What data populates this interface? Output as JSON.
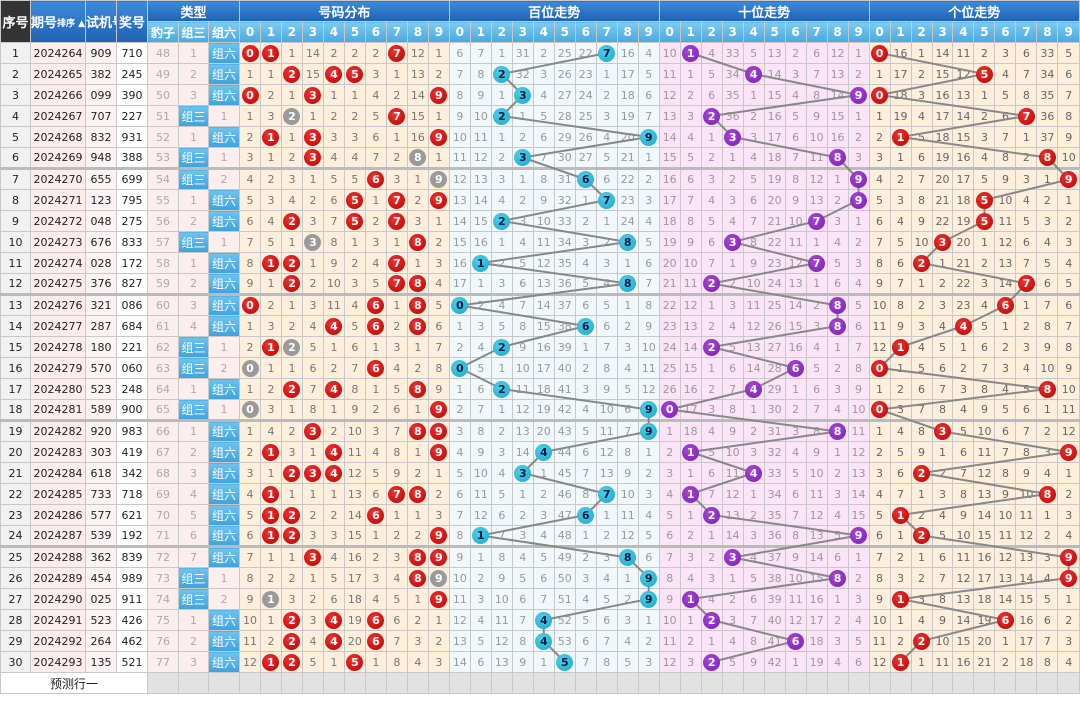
{
  "headers": {
    "seq": "序号",
    "issue": "期号",
    "sort": "排序",
    "test": "试机号",
    "prize": "奖号",
    "type": "类型",
    "type_cols": [
      "豹子",
      "组三",
      "组六"
    ],
    "dist": "号码分布",
    "hund": "百位走势",
    "ten": "十位走势",
    "unit": "个位走势",
    "digits": [
      "0",
      "1",
      "2",
      "3",
      "4",
      "5",
      "6",
      "7",
      "8",
      "9"
    ]
  },
  "labels": {
    "zu3": "组三",
    "zu6": "组六",
    "predict": "预测行一"
  },
  "colors": {
    "header": "#1f62b4",
    "sub": "#4aa8e0",
    "dist_ball": "#c00000",
    "dup_ball": "#9a9a9a",
    "hund_ball": "#1aa6c8",
    "ten_ball": "#7a1fb0",
    "unit_ball": "#c00000",
    "line": "#888888"
  },
  "first_row_omissions": {
    "baozi": 48,
    "zu3": 1,
    "zu6": null,
    "dist": [
      null,
      null,
      1,
      14,
      2,
      2,
      2,
      null,
      12,
      1
    ],
    "hund": [
      6,
      7,
      1,
      31,
      2,
      25,
      22,
      null,
      16,
      4
    ],
    "ten": [
      10,
      null,
      4,
      33,
      5,
      13,
      2,
      6,
      12,
      1
    ],
    "unit": [
      null,
      16,
      1,
      14,
      11,
      2,
      3,
      6,
      33,
      5
    ]
  },
  "rows": [
    {
      "seq": "1",
      "issue": "2024264",
      "test": "909",
      "prize": "710"
    },
    {
      "seq": "2",
      "issue": "2024265",
      "test": "382",
      "prize": "245"
    },
    {
      "seq": "3",
      "issue": "2024266",
      "test": "099",
      "prize": "390"
    },
    {
      "seq": "4",
      "issue": "2024267",
      "test": "707",
      "prize": "227"
    },
    {
      "seq": "5",
      "issue": "2024268",
      "test": "832",
      "prize": "931"
    },
    {
      "seq": "6",
      "issue": "2024269",
      "test": "948",
      "prize": "388"
    },
    {
      "seq": "7",
      "issue": "2024270",
      "test": "655",
      "prize": "699"
    },
    {
      "seq": "8",
      "issue": "2024271",
      "test": "123",
      "prize": "795"
    },
    {
      "seq": "9",
      "issue": "2024272",
      "test": "048",
      "prize": "275"
    },
    {
      "seq": "10",
      "issue": "2024273",
      "test": "676",
      "prize": "833"
    },
    {
      "seq": "11",
      "issue": "2024274",
      "test": "028",
      "prize": "172"
    },
    {
      "seq": "12",
      "issue": "2024275",
      "test": "376",
      "prize": "827"
    },
    {
      "seq": "13",
      "issue": "2024276",
      "test": "321",
      "prize": "086"
    },
    {
      "seq": "14",
      "issue": "2024277",
      "test": "287",
      "prize": "684"
    },
    {
      "seq": "15",
      "issue": "2024278",
      "test": "180",
      "prize": "221"
    },
    {
      "seq": "16",
      "issue": "2024279",
      "test": "570",
      "prize": "060"
    },
    {
      "seq": "17",
      "issue": "2024280",
      "test": "523",
      "prize": "248"
    },
    {
      "seq": "18",
      "issue": "2024281",
      "test": "589",
      "prize": "900"
    },
    {
      "seq": "19",
      "issue": "2024282",
      "test": "920",
      "prize": "983"
    },
    {
      "seq": "20",
      "issue": "2024283",
      "test": "303",
      "prize": "419"
    },
    {
      "seq": "21",
      "issue": "2024284",
      "test": "618",
      "prize": "342"
    },
    {
      "seq": "22",
      "issue": "2024285",
      "test": "733",
      "prize": "718"
    },
    {
      "seq": "23",
      "issue": "2024286",
      "test": "577",
      "prize": "621"
    },
    {
      "seq": "24",
      "issue": "2024287",
      "test": "539",
      "prize": "192"
    },
    {
      "seq": "25",
      "issue": "2024288",
      "test": "362",
      "prize": "839"
    },
    {
      "seq": "26",
      "issue": "2024289",
      "test": "454",
      "prize": "989"
    },
    {
      "seq": "27",
      "issue": "2024290",
      "test": "025",
      "prize": "911"
    },
    {
      "seq": "28",
      "issue": "2024291",
      "test": "523",
      "prize": "426"
    },
    {
      "seq": "29",
      "issue": "2024292",
      "test": "264",
      "prize": "462"
    },
    {
      "seq": "30",
      "issue": "2024293",
      "test": "135",
      "prize": "521"
    }
  ]
}
